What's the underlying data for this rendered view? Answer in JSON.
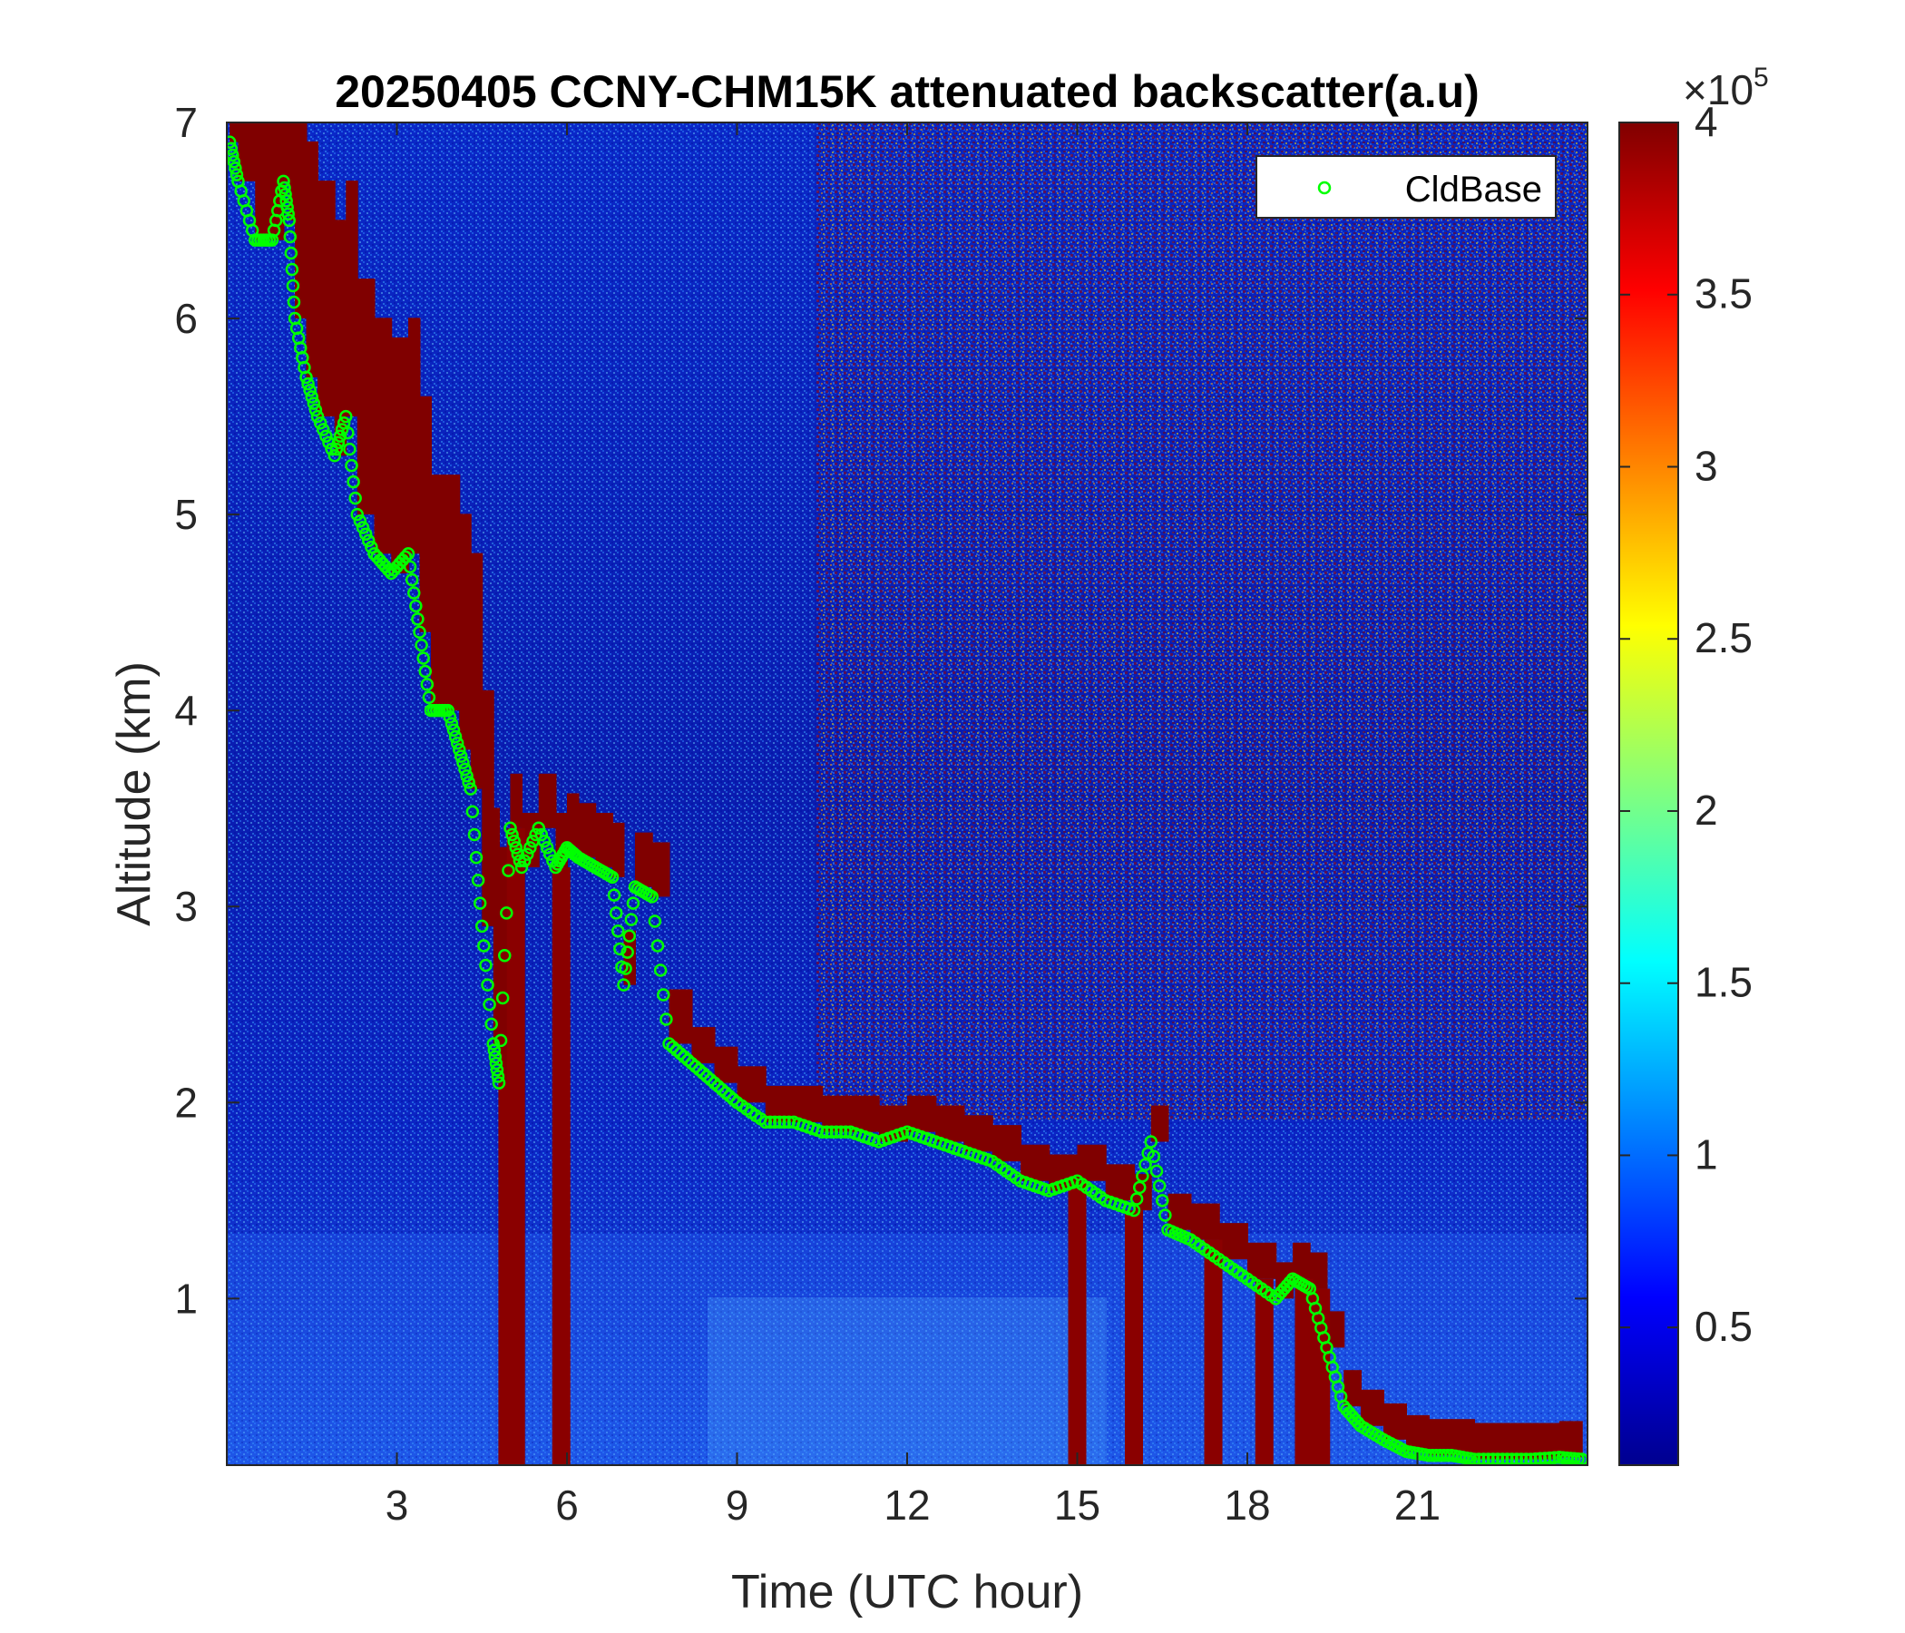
{
  "chart_data": {
    "type": "heatmap",
    "title": "20250405 CCNY-CHM15K attenuated backscatter(a.u)",
    "xlabel": "Time (UTC hour)",
    "ylabel": "Altitude (km)",
    "xlim": [
      0,
      24
    ],
    "ylim": [
      0.15,
      7
    ],
    "xticks": [
      "3",
      "6",
      "9",
      "12",
      "15",
      "18",
      "21"
    ],
    "yticks": [
      "1",
      "2",
      "3",
      "4",
      "5",
      "6",
      "7"
    ],
    "colorbar": {
      "ticks": [
        "0.5",
        "1",
        "1.5",
        "2",
        "2.5",
        "3",
        "3.5",
        "4"
      ],
      "range": [
        0.1,
        4.0
      ],
      "multiplier_base": "×10",
      "multiplier_exp": "5",
      "colormap": "jet"
    },
    "legend": {
      "position": "top-right",
      "entries": [
        "CldBase"
      ]
    },
    "series": [
      {
        "name": "CldBase",
        "marker": "circle-open",
        "color": "#00ff00",
        "x": [
          0.05,
          0.2,
          0.5,
          0.8,
          1.0,
          1.1,
          1.2,
          1.4,
          1.6,
          1.9,
          2.1,
          2.3,
          2.6,
          2.9,
          3.2,
          3.4,
          3.6,
          3.9,
          4.1,
          4.3,
          4.5,
          4.7,
          4.8,
          5.0,
          5.2,
          5.5,
          5.8,
          6.0,
          6.2,
          6.5,
          6.8,
          7.0,
          7.2,
          7.5,
          7.8,
          8.2,
          8.6,
          9.0,
          9.5,
          10.0,
          10.5,
          11.0,
          11.5,
          12.0,
          12.5,
          13.0,
          13.5,
          14.0,
          14.5,
          15.0,
          15.5,
          16.0,
          16.3,
          16.6,
          17.0,
          17.5,
          18.0,
          18.5,
          18.8,
          19.1,
          19.4,
          19.7,
          20.0,
          20.4,
          20.8,
          21.2,
          21.6,
          22.0,
          22.5,
          23.0,
          23.5,
          23.9
        ],
        "y": [
          6.9,
          6.7,
          6.4,
          6.4,
          6.7,
          6.5,
          6.0,
          5.7,
          5.5,
          5.3,
          5.5,
          5.0,
          4.8,
          4.7,
          4.8,
          4.4,
          4.0,
          4.0,
          3.8,
          3.6,
          2.9,
          2.3,
          2.1,
          3.4,
          3.2,
          3.4,
          3.2,
          3.3,
          3.25,
          3.2,
          3.15,
          2.6,
          3.1,
          3.05,
          2.3,
          2.2,
          2.1,
          2.0,
          1.9,
          1.9,
          1.85,
          1.85,
          1.8,
          1.85,
          1.8,
          1.75,
          1.7,
          1.6,
          1.55,
          1.6,
          1.5,
          1.45,
          1.8,
          1.35,
          1.3,
          1.2,
          1.1,
          1.0,
          1.1,
          1.05,
          0.75,
          0.45,
          0.35,
          0.28,
          0.22,
          0.2,
          0.2,
          0.18,
          0.18,
          0.18,
          0.19,
          0.18
        ]
      }
    ]
  }
}
